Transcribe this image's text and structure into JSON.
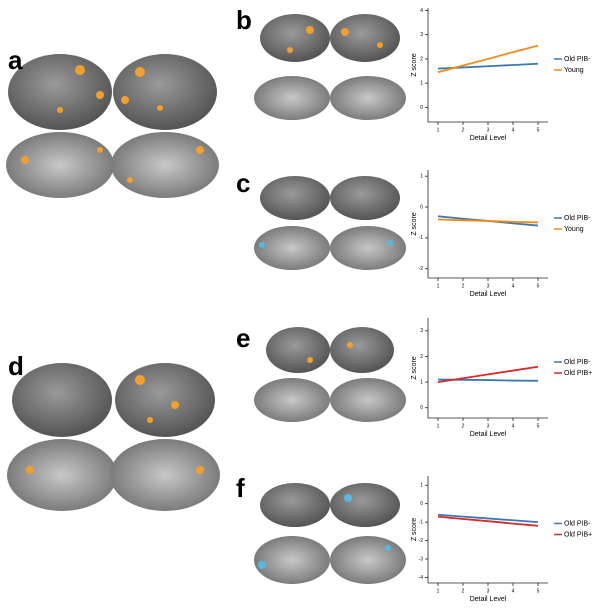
{
  "panels": [
    "a",
    "b",
    "c",
    "d",
    "e",
    "f"
  ],
  "chart_data": [
    {
      "type": "line",
      "xlabel": "Detail Level",
      "ylabel": "Z score",
      "x": [
        1,
        2,
        3,
        4,
        5
      ],
      "xlim": [
        0.6,
        5.4
      ],
      "xticks": [
        1,
        2,
        3,
        4,
        5
      ],
      "ylim": [
        -0.6,
        4.1
      ],
      "yticks": [
        0,
        1,
        2,
        3,
        4
      ],
      "series": [
        {
          "name": "Old PIB-",
          "color": "#3a78b5",
          "values": [
            1.6,
            1.65,
            1.7,
            1.75,
            1.8
          ]
        },
        {
          "name": "Young",
          "color": "#f08a1c",
          "values": [
            1.45,
            1.73,
            2.0,
            2.28,
            2.55
          ]
        }
      ]
    },
    {
      "type": "line",
      "xlabel": "Detail Level",
      "ylabel": "Z score",
      "x": [
        1,
        2,
        3,
        4,
        5
      ],
      "xlim": [
        0.6,
        5.4
      ],
      "xticks": [
        1,
        2,
        3,
        4,
        5
      ],
      "ylim": [
        -2.3,
        1.2
      ],
      "yticks": [
        -2,
        -1,
        0,
        1
      ],
      "series": [
        {
          "name": "Old PIB-",
          "color": "#3a78b5",
          "values": [
            -0.3,
            -0.38,
            -0.45,
            -0.53,
            -0.6
          ]
        },
        {
          "name": "Young",
          "color": "#f08a1c",
          "values": [
            -0.4,
            -0.43,
            -0.45,
            -0.48,
            -0.5
          ]
        }
      ]
    },
    {
      "type": "line",
      "xlabel": "Detail Level",
      "ylabel": "Z score",
      "x": [
        1,
        2,
        3,
        4,
        5
      ],
      "xlim": [
        0.6,
        5.4
      ],
      "xticks": [
        1,
        2,
        3,
        4,
        5
      ],
      "ylim": [
        -0.4,
        3.5
      ],
      "yticks": [
        0,
        1,
        2,
        3
      ],
      "series": [
        {
          "name": "Old PIB-",
          "color": "#3a78b5",
          "values": [
            1.1,
            1.09,
            1.08,
            1.06,
            1.05
          ]
        },
        {
          "name": "Old PIB+",
          "color": "#d42a2a",
          "values": [
            1.0,
            1.15,
            1.3,
            1.45,
            1.6
          ]
        }
      ]
    },
    {
      "type": "line",
      "xlabel": "Detail Level",
      "ylabel": "Z score",
      "x": [
        1,
        2,
        3,
        4,
        5
      ],
      "xlim": [
        0.6,
        5.4
      ],
      "xticks": [
        1,
        2,
        3,
        4,
        5
      ],
      "ylim": [
        -4.3,
        1.5
      ],
      "yticks": [
        -4,
        -3,
        -2,
        -1,
        0,
        1
      ],
      "series": [
        {
          "name": "Old PIB-",
          "color": "#3a78b5",
          "values": [
            -0.6,
            -0.7,
            -0.8,
            -0.9,
            -1.0
          ]
        },
        {
          "name": "Old PIB+",
          "color": "#d42a2a",
          "values": [
            -0.7,
            -0.83,
            -0.95,
            -1.08,
            -1.2
          ]
        }
      ]
    }
  ]
}
